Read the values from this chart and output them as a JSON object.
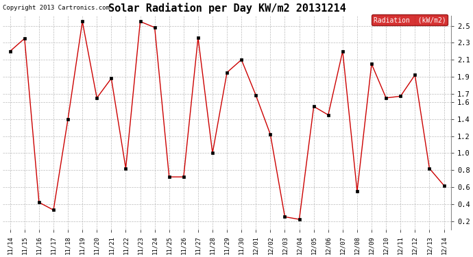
{
  "title": "Solar Radiation per Day KW/m2 20131214",
  "copyright": "Copyright 2013 Cartronics.com",
  "legend_label": "Radiation  (kW/m2)",
  "legend_bg": "#cc0000",
  "legend_text_color": "#ffffff",
  "line_color": "#cc0000",
  "marker_color": "#000000",
  "bg_color": "#ffffff",
  "plot_bg_color": "#ffffff",
  "grid_color": "#bbbbbb",
  "ylim": [
    0.1,
    2.62
  ],
  "yticks": [
    0.2,
    0.4,
    0.6,
    0.8,
    1.0,
    1.2,
    1.4,
    1.6,
    1.7,
    1.9,
    2.1,
    2.3,
    2.5
  ],
  "labels": [
    "11/14",
    "11/15",
    "11/16",
    "11/17",
    "11/18",
    "11/19",
    "11/20",
    "11/21",
    "11/22",
    "11/23",
    "11/24",
    "11/25",
    "11/26",
    "11/27",
    "11/28",
    "11/29",
    "11/30",
    "12/01",
    "12/02",
    "12/03",
    "12/04",
    "12/05",
    "12/06",
    "12/07",
    "12/08",
    "12/09",
    "12/10",
    "12/11",
    "12/12",
    "12/13",
    "12/14"
  ],
  "values": [
    2.2,
    2.35,
    0.42,
    0.33,
    1.4,
    2.55,
    1.65,
    1.88,
    0.82,
    2.55,
    2.48,
    0.72,
    0.72,
    2.36,
    1.0,
    1.95,
    2.1,
    1.68,
    1.22,
    0.25,
    0.22,
    1.55,
    1.45,
    2.2,
    0.55,
    2.05,
    1.65,
    1.67,
    1.92,
    0.82,
    0.62
  ]
}
